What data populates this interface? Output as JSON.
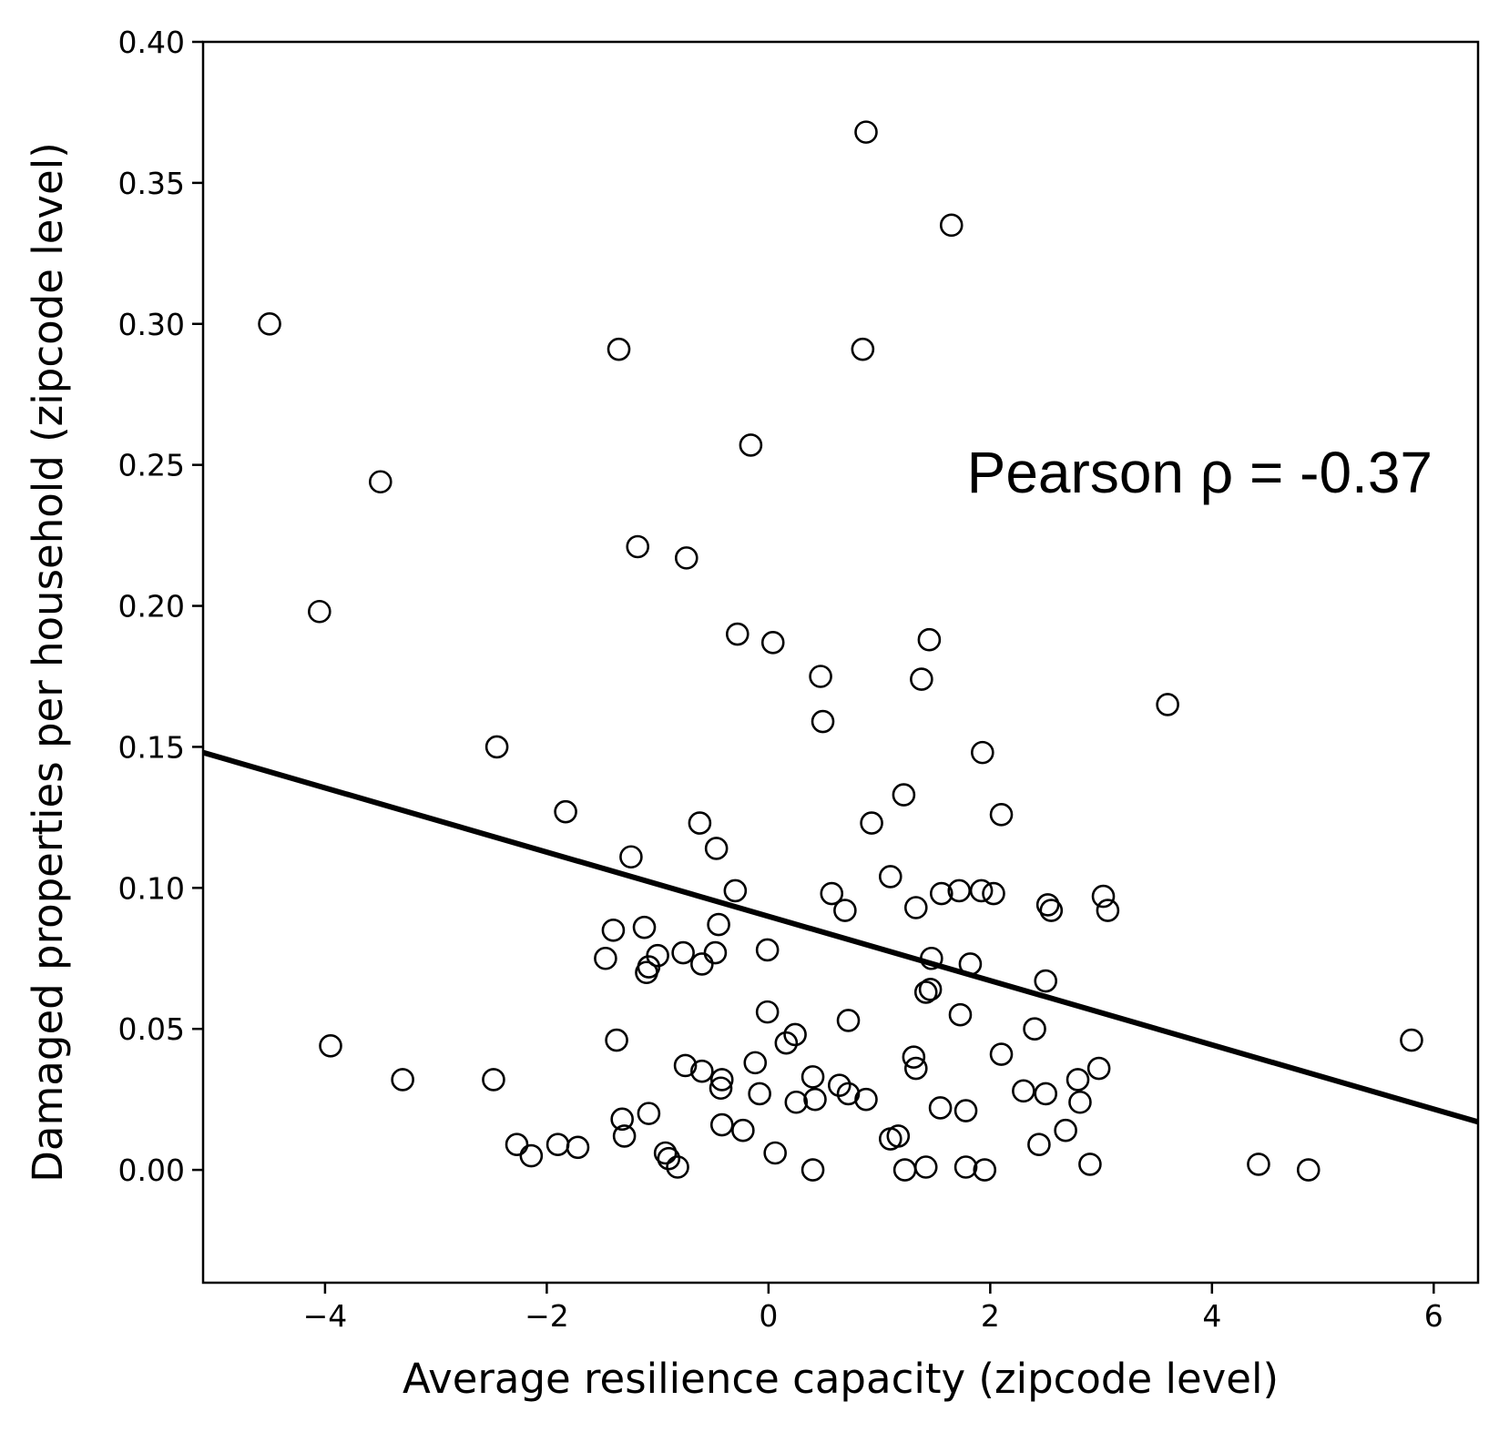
{
  "chart_data": {
    "type": "scatter",
    "xlabel": "Average resilience capacity (zipcode level)",
    "ylabel": "Damaged properties per household (zipcode level)",
    "annotation": "Pearson ρ = -0.37",
    "xlim": [
      -5.1,
      6.4
    ],
    "ylim": [
      -0.04,
      0.4
    ],
    "xticks": [
      -4,
      -2,
      0,
      2,
      4,
      6
    ],
    "xtick_labels": [
      "−4",
      "−2",
      "0",
      "2",
      "4",
      "6"
    ],
    "yticks": [
      0.0,
      0.05,
      0.1,
      0.15,
      0.2,
      0.25,
      0.3,
      0.35,
      0.4
    ],
    "ytick_labels": [
      "0.00",
      "0.05",
      "0.10",
      "0.15",
      "0.20",
      "0.25",
      "0.30",
      "0.35",
      "0.40"
    ],
    "grid": false,
    "marker": "open-circle",
    "trend_line": {
      "x": [
        -5.1,
        6.4
      ],
      "y": [
        0.148,
        0.017
      ]
    },
    "points": [
      [
        -4.5,
        0.3
      ],
      [
        -3.5,
        0.244
      ],
      [
        -4.05,
        0.198
      ],
      [
        -2.45,
        0.15
      ],
      [
        -3.95,
        0.044
      ],
      [
        -3.3,
        0.032
      ],
      [
        -2.48,
        0.032
      ],
      [
        -2.27,
        0.009
      ],
      [
        -2.14,
        0.005
      ],
      [
        -1.9,
        0.009
      ],
      [
        -1.72,
        0.008
      ],
      [
        -1.83,
        0.127
      ],
      [
        -1.35,
        0.291
      ],
      [
        -1.18,
        0.221
      ],
      [
        -0.74,
        0.217
      ],
      [
        -1.24,
        0.111
      ],
      [
        -0.62,
        0.123
      ],
      [
        -0.47,
        0.114
      ],
      [
        -0.3,
        0.099
      ],
      [
        -0.28,
        0.19
      ],
      [
        -0.16,
        0.257
      ],
      [
        0.04,
        0.187
      ],
      [
        -1.4,
        0.085
      ],
      [
        -1.12,
        0.086
      ],
      [
        -1.47,
        0.075
      ],
      [
        -1.08,
        0.072
      ],
      [
        -1.1,
        0.07
      ],
      [
        -1.0,
        0.076
      ],
      [
        -0.77,
        0.077
      ],
      [
        -0.6,
        0.073
      ],
      [
        -0.48,
        0.077
      ],
      [
        -0.45,
        0.087
      ],
      [
        -1.37,
        0.046
      ],
      [
        -0.75,
        0.037
      ],
      [
        -0.6,
        0.035
      ],
      [
        -0.42,
        0.032
      ],
      [
        -0.43,
        0.029
      ],
      [
        -0.12,
        0.038
      ],
      [
        -0.08,
        0.027
      ],
      [
        -0.42,
        0.016
      ],
      [
        -0.23,
        0.014
      ],
      [
        -1.32,
        0.018
      ],
      [
        -1.3,
        0.012
      ],
      [
        -1.08,
        0.02
      ],
      [
        -0.93,
        0.006
      ],
      [
        -0.9,
        0.004
      ],
      [
        -0.82,
        0.001
      ],
      [
        0.06,
        0.006
      ],
      [
        -0.01,
        0.078
      ],
      [
        -0.01,
        0.056
      ],
      [
        0.16,
        0.045
      ],
      [
        0.24,
        0.048
      ],
      [
        0.25,
        0.024
      ],
      [
        0.4,
        0.033
      ],
      [
        0.42,
        0.025
      ],
      [
        0.4,
        0.0
      ],
      [
        0.64,
        0.03
      ],
      [
        0.72,
        0.027
      ],
      [
        0.88,
        0.025
      ],
      [
        0.72,
        0.053
      ],
      [
        0.57,
        0.098
      ],
      [
        0.69,
        0.092
      ],
      [
        0.93,
        0.123
      ],
      [
        0.49,
        0.159
      ],
      [
        0.47,
        0.175
      ],
      [
        0.88,
        0.368
      ],
      [
        0.85,
        0.291
      ],
      [
        1.22,
        0.133
      ],
      [
        1.1,
        0.104
      ],
      [
        1.33,
        0.093
      ],
      [
        1.38,
        0.174
      ],
      [
        1.45,
        0.188
      ],
      [
        1.56,
        0.098
      ],
      [
        1.72,
        0.099
      ],
      [
        1.92,
        0.099
      ],
      [
        2.03,
        0.098
      ],
      [
        1.47,
        0.075
      ],
      [
        1.42,
        0.063
      ],
      [
        1.46,
        0.064
      ],
      [
        1.82,
        0.073
      ],
      [
        1.73,
        0.055
      ],
      [
        1.31,
        0.04
      ],
      [
        1.33,
        0.036
      ],
      [
        1.55,
        0.022
      ],
      [
        1.78,
        0.021
      ],
      [
        1.1,
        0.011
      ],
      [
        1.17,
        0.012
      ],
      [
        1.23,
        0.0
      ],
      [
        1.42,
        0.001
      ],
      [
        1.78,
        0.001
      ],
      [
        1.95,
        0.0
      ],
      [
        1.93,
        0.148
      ],
      [
        2.1,
        0.126
      ],
      [
        1.65,
        0.335
      ],
      [
        2.1,
        0.041
      ],
      [
        2.3,
        0.028
      ],
      [
        2.4,
        0.05
      ],
      [
        2.5,
        0.027
      ],
      [
        2.5,
        0.067
      ],
      [
        2.52,
        0.094
      ],
      [
        2.55,
        0.092
      ],
      [
        2.44,
        0.009
      ],
      [
        2.68,
        0.014
      ],
      [
        2.79,
        0.032
      ],
      [
        2.81,
        0.024
      ],
      [
        2.9,
        0.002
      ],
      [
        2.98,
        0.036
      ],
      [
        3.02,
        0.097
      ],
      [
        3.06,
        0.092
      ],
      [
        3.6,
        0.165
      ],
      [
        4.42,
        0.002
      ],
      [
        4.87,
        0.0
      ],
      [
        5.8,
        0.046
      ]
    ]
  }
}
